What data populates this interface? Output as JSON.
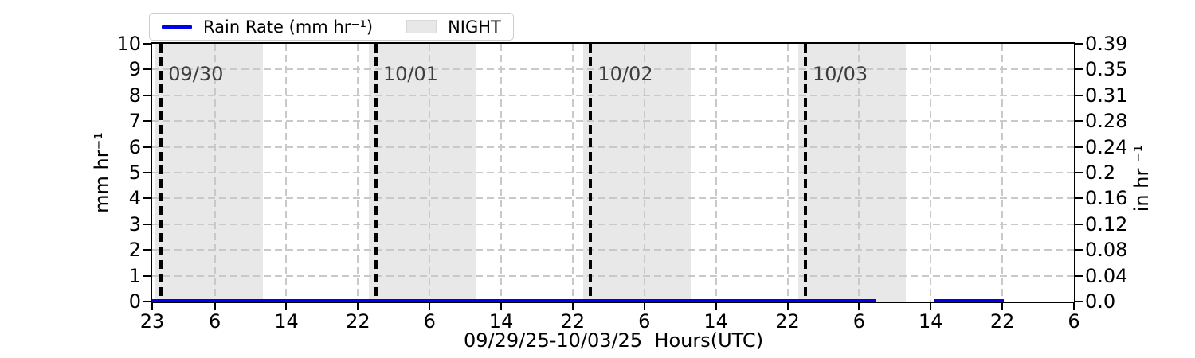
{
  "chart_data": {
    "type": "line",
    "title": "",
    "xlabel": "09/29/25-10/03/25  Hours(UTC)",
    "ylabel_left": "mm hr⁻¹",
    "ylabel_right": "in hr ⁻¹",
    "x_hours_span": [
      0,
      103
    ],
    "ylim": [
      0,
      10
    ],
    "grid": {
      "on": true,
      "style": "dashed"
    },
    "xticks": [
      {
        "t": 0,
        "label": "23"
      },
      {
        "t": 7,
        "label": "6"
      },
      {
        "t": 15,
        "label": "14"
      },
      {
        "t": 23,
        "label": "22"
      },
      {
        "t": 31,
        "label": "6"
      },
      {
        "t": 39,
        "label": "14"
      },
      {
        "t": 47,
        "label": "22"
      },
      {
        "t": 55,
        "label": "6"
      },
      {
        "t": 63,
        "label": "14"
      },
      {
        "t": 71,
        "label": "22"
      },
      {
        "t": 79,
        "label": "6"
      },
      {
        "t": 87,
        "label": "14"
      },
      {
        "t": 95,
        "label": "22"
      },
      {
        "t": 103,
        "label": "6"
      }
    ],
    "yticks_left": [
      {
        "v": 0,
        "label": "0"
      },
      {
        "v": 1,
        "label": "1"
      },
      {
        "v": 2,
        "label": "2"
      },
      {
        "v": 3,
        "label": "3"
      },
      {
        "v": 4,
        "label": "4"
      },
      {
        "v": 5,
        "label": "5"
      },
      {
        "v": 6,
        "label": "6"
      },
      {
        "v": 7,
        "label": "7"
      },
      {
        "v": 8,
        "label": "8"
      },
      {
        "v": 9,
        "label": "9"
      },
      {
        "v": 10,
        "label": "10"
      }
    ],
    "yticks_right": [
      {
        "v": 0,
        "label": "0.0"
      },
      {
        "v": 1,
        "label": "0.04"
      },
      {
        "v": 2,
        "label": "0.08"
      },
      {
        "v": 3,
        "label": "0.12"
      },
      {
        "v": 4,
        "label": "0.16"
      },
      {
        "v": 5,
        "label": "0.2"
      },
      {
        "v": 6,
        "label": "0.24"
      },
      {
        "v": 7,
        "label": "0.28"
      },
      {
        "v": 8,
        "label": "0.31"
      },
      {
        "v": 9,
        "label": "0.35"
      },
      {
        "v": 10,
        "label": "0.39"
      }
    ],
    "night_bands": [
      [
        0.3,
        12.4
      ],
      [
        24.2,
        36.2
      ],
      [
        48.2,
        60.2
      ],
      [
        72.2,
        84.2
      ]
    ],
    "date_lines": [
      {
        "t": 1,
        "label": "09/30"
      },
      {
        "t": 25,
        "label": "10/01"
      },
      {
        "t": 49,
        "label": "10/02"
      },
      {
        "t": 73,
        "label": "10/03"
      }
    ],
    "series": [
      {
        "name": "Rain Rate (mm hr⁻¹)",
        "color": "#0000ee",
        "value": 0,
        "segments": [
          [
            0,
            80.9
          ],
          [
            87.4,
            95.2
          ]
        ]
      }
    ],
    "legend": {
      "position": "top-left",
      "entries": [
        {
          "label": "Rain Rate (mm hr⁻¹)",
          "swatch": "line",
          "color": "#0000ee"
        },
        {
          "label": "NIGHT",
          "swatch": "patch",
          "color": "#e8e8e8"
        }
      ]
    },
    "colors": {
      "rain_line": "#0000ee",
      "night_band": "#e8e8e8",
      "grid": "#c9c9c9",
      "date_line": "#000000",
      "date_label": "#3d3d3d",
      "frame": "#000000"
    }
  }
}
